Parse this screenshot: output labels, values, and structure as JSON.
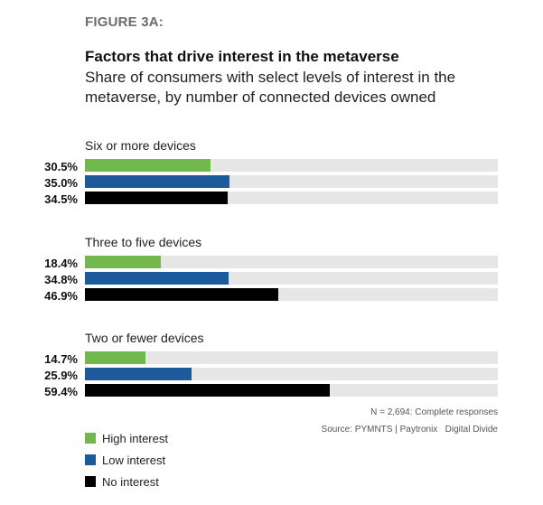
{
  "figure_label": "FIGURE 3A:",
  "chart_data": {
    "type": "bar",
    "orientation": "horizontal",
    "title": "Factors that drive interest in the metaverse",
    "subtitle": "Share of consumers with select levels of interest in the metaverse, by number of connected devices owned",
    "categories": [
      "Six or more devices",
      "Three to five devices",
      "Two or fewer devices"
    ],
    "series": [
      {
        "name": "High interest",
        "color": "#72b84c",
        "values": [
          30.5,
          18.4,
          14.7
        ],
        "labels": [
          "30.5%",
          "18.4%",
          "14.7%"
        ]
      },
      {
        "name": "Low interest",
        "color": "#1d5a9c",
        "values": [
          35.0,
          34.8,
          25.9
        ],
        "labels": [
          "35.0%",
          "34.8%",
          "25.9%"
        ]
      },
      {
        "name": "No interest",
        "color": "#000000",
        "values": [
          34.5,
          46.9,
          59.4
        ],
        "labels": [
          "34.5%",
          "46.9%",
          "59.4%"
        ]
      }
    ],
    "xlim": [
      0,
      100
    ],
    "legend_position": "bottom-left"
  },
  "notes": {
    "sample": "N = 2,694: Complete responses",
    "source": "Source: PYMNTS | Paytronix   Digital Divide"
  }
}
